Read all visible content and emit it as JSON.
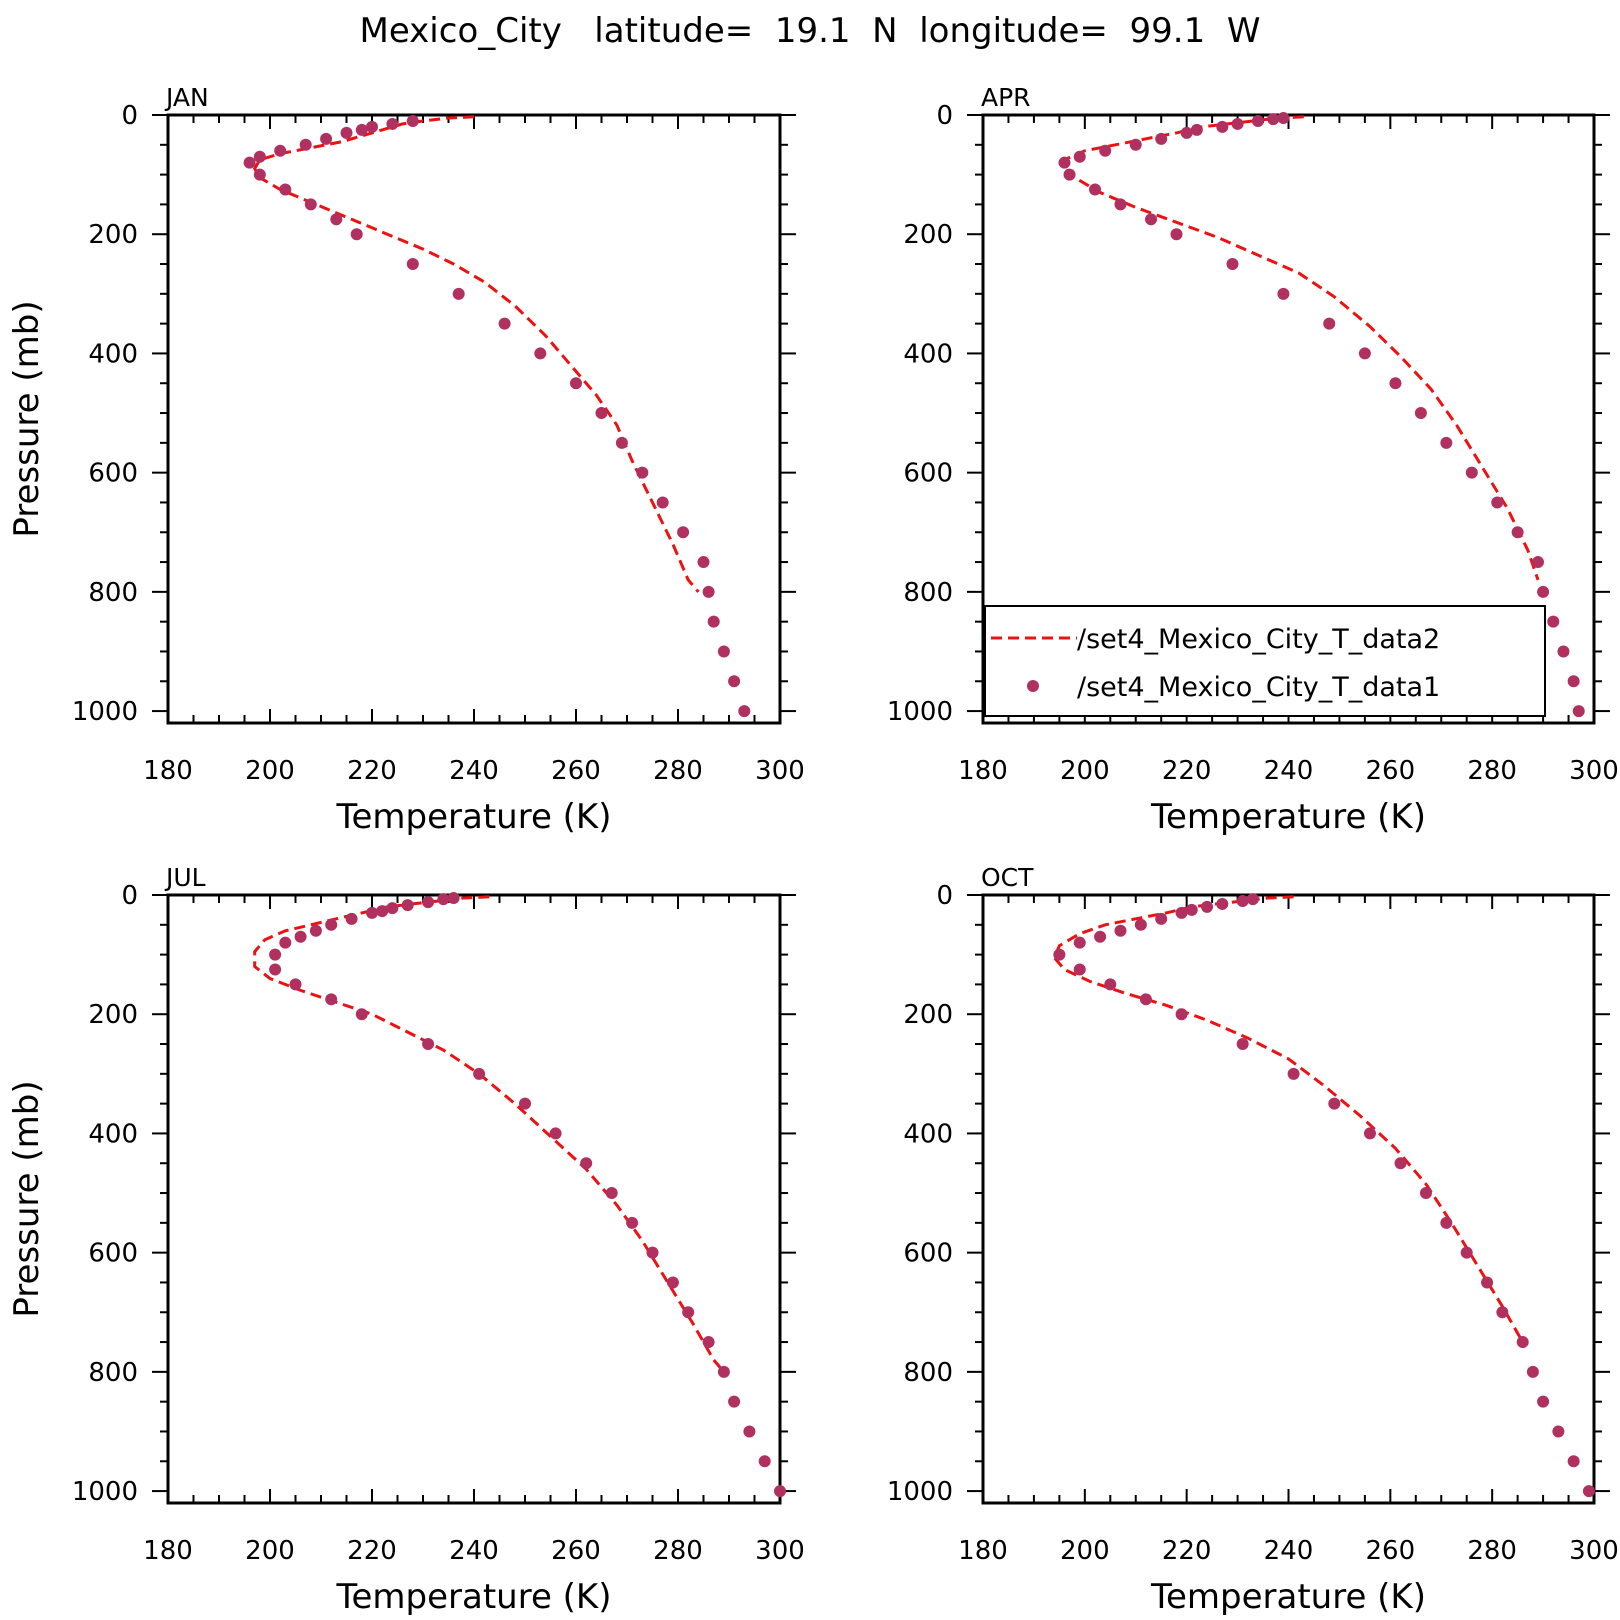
{
  "figure_title": "Mexico_City   latitude=  19.1  N  longitude=  99.1  W",
  "colors": {
    "line": "#ee1111",
    "marker": "#b03060",
    "axis": "#000000"
  },
  "legend": {
    "line_label": "/set4_Mexico_City_T_data2",
    "marker_label": "/set4_Mexico_City_T_data1",
    "panel": "APR"
  },
  "chart_data": [
    {
      "type": "line",
      "panel": "JAN",
      "xlabel": "Temperature (K)",
      "ylabel": "Pressure (mb)",
      "xlim": [
        180,
        300
      ],
      "ylim": [
        0,
        1020
      ],
      "y_inverted": true,
      "xticks": [
        180,
        200,
        220,
        240,
        260,
        280,
        300
      ],
      "yticks": [
        0,
        200,
        400,
        600,
        800,
        1000
      ],
      "series": [
        {
          "name": "/set4_Mexico_City_T_data2",
          "style": "dashed-line",
          "x": [
            240,
            235,
            230,
            226,
            222,
            218,
            214,
            208,
            202,
            198,
            197,
            198,
            202,
            209,
            216,
            223,
            230,
            236,
            242,
            248,
            254,
            259,
            264,
            268,
            271,
            275,
            279,
            282,
            284
          ],
          "y": [
            3,
            5,
            10,
            15,
            25,
            35,
            45,
            55,
            65,
            75,
            90,
            105,
            125,
            150,
            175,
            200,
            225,
            250,
            280,
            320,
            370,
            420,
            470,
            520,
            580,
            650,
            720,
            780,
            800
          ]
        },
        {
          "name": "/set4_Mexico_City_T_data1",
          "style": "markers",
          "x": [
            228,
            224,
            220,
            218,
            215,
            211,
            207,
            202,
            198,
            196,
            198,
            203,
            208,
            213,
            217,
            228,
            237,
            246,
            253,
            260,
            265,
            269,
            273,
            277,
            281,
            285,
            286,
            287,
            289,
            291,
            293
          ],
          "y": [
            10,
            15,
            20,
            25,
            30,
            40,
            50,
            60,
            70,
            80,
            100,
            125,
            150,
            175,
            200,
            250,
            300,
            350,
            400,
            450,
            500,
            550,
            600,
            650,
            700,
            750,
            800,
            850,
            900,
            950,
            1000
          ]
        }
      ]
    },
    {
      "type": "line",
      "panel": "APR",
      "xlabel": "Temperature (K)",
      "ylabel": "",
      "xlim": [
        180,
        300
      ],
      "ylim": [
        0,
        1020
      ],
      "y_inverted": true,
      "xticks": [
        180,
        200,
        220,
        240,
        260,
        280,
        300
      ],
      "yticks": [
        0,
        200,
        400,
        600,
        800,
        1000
      ],
      "series": [
        {
          "name": "/set4_Mexico_City_T_data2",
          "style": "dashed-line",
          "x": [
            243,
            238,
            233,
            228,
            223,
            218,
            212,
            206,
            200,
            196,
            196,
            198,
            203,
            210,
            218,
            226,
            234,
            242,
            249,
            256,
            262,
            268,
            273,
            278,
            283,
            287,
            289
          ],
          "y": [
            3,
            5,
            10,
            15,
            20,
            30,
            40,
            50,
            60,
            75,
            90,
            105,
            130,
            155,
            180,
            205,
            235,
            265,
            305,
            355,
            405,
            460,
            520,
            590,
            660,
            730,
            780
          ]
        },
        {
          "name": "/set4_Mexico_City_T_data1",
          "style": "markers",
          "x": [
            239,
            237,
            234,
            230,
            227,
            222,
            220,
            215,
            210,
            204,
            199,
            196,
            197,
            202,
            207,
            213,
            218,
            229,
            239,
            248,
            255,
            261,
            266,
            271,
            276,
            281,
            285,
            289,
            290,
            292,
            294,
            296,
            297
          ],
          "y": [
            5,
            7,
            10,
            15,
            20,
            25,
            30,
            40,
            50,
            60,
            70,
            80,
            100,
            125,
            150,
            175,
            200,
            250,
            300,
            350,
            400,
            450,
            500,
            550,
            600,
            650,
            700,
            750,
            800,
            850,
            900,
            950,
            1000
          ]
        }
      ]
    },
    {
      "type": "line",
      "panel": "JUL",
      "xlabel": "Temperature (K)",
      "ylabel": "Pressure (mb)",
      "xlim": [
        180,
        300
      ],
      "ylim": [
        0,
        1020
      ],
      "y_inverted": true,
      "xticks": [
        180,
        200,
        220,
        240,
        260,
        280,
        300
      ],
      "yticks": [
        0,
        200,
        400,
        600,
        800,
        1000
      ],
      "series": [
        {
          "name": "/set4_Mexico_City_T_data2",
          "style": "dashed-line",
          "x": [
            243,
            238,
            233,
            228,
            223,
            218,
            213,
            208,
            203,
            199,
            197,
            197,
            200,
            206,
            213,
            220,
            227,
            234,
            241,
            248,
            255,
            262,
            268,
            273,
            278,
            283,
            287,
            289
          ],
          "y": [
            3,
            5,
            10,
            15,
            20,
            30,
            40,
            50,
            60,
            75,
            95,
            120,
            140,
            160,
            180,
            200,
            230,
            260,
            300,
            350,
            405,
            460,
            520,
            580,
            650,
            720,
            780,
            800
          ]
        },
        {
          "name": "/set4_Mexico_City_T_data1",
          "style": "markers",
          "x": [
            236,
            234,
            231,
            227,
            224,
            222,
            220,
            216,
            212,
            209,
            206,
            203,
            201,
            201,
            205,
            212,
            218,
            231,
            241,
            250,
            256,
            262,
            267,
            271,
            275,
            279,
            282,
            286,
            289,
            291,
            294,
            297,
            300
          ],
          "y": [
            5,
            7,
            12,
            17,
            22,
            27,
            30,
            40,
            50,
            60,
            70,
            80,
            100,
            125,
            150,
            175,
            200,
            250,
            300,
            350,
            400,
            450,
            500,
            550,
            600,
            650,
            700,
            750,
            800,
            850,
            900,
            950,
            1000
          ]
        }
      ]
    },
    {
      "type": "line",
      "panel": "OCT",
      "xlabel": "Temperature (K)",
      "ylabel": "",
      "xlim": [
        180,
        300
      ],
      "ylim": [
        0,
        1020
      ],
      "y_inverted": true,
      "xticks": [
        180,
        200,
        220,
        240,
        260,
        280,
        300
      ],
      "yticks": [
        0,
        200,
        400,
        600,
        800,
        1000
      ],
      "series": [
        {
          "name": "/set4_Mexico_City_T_data2",
          "style": "dashed-line",
          "x": [
            241,
            236,
            231,
            226,
            221,
            216,
            210,
            204,
            199,
            195,
            194,
            196,
            201,
            208,
            216,
            224,
            232,
            240,
            247,
            254,
            261,
            267,
            272,
            277,
            282,
            286
          ],
          "y": [
            3,
            5,
            10,
            15,
            20,
            30,
            40,
            50,
            65,
            85,
            105,
            125,
            145,
            165,
            185,
            210,
            240,
            275,
            320,
            370,
            425,
            485,
            550,
            620,
            690,
            750
          ]
        },
        {
          "name": "/set4_Mexico_City_T_data1",
          "style": "markers",
          "x": [
            233,
            231,
            227,
            224,
            221,
            219,
            215,
            211,
            207,
            203,
            199,
            195,
            199,
            205,
            212,
            219,
            231,
            241,
            249,
            256,
            262,
            267,
            271,
            275,
            279,
            282,
            286,
            288,
            290,
            293,
            296,
            299
          ],
          "y": [
            7,
            10,
            15,
            20,
            25,
            30,
            40,
            50,
            60,
            70,
            80,
            100,
            125,
            150,
            175,
            200,
            250,
            300,
            350,
            400,
            450,
            500,
            550,
            600,
            650,
            700,
            750,
            800,
            850,
            900,
            950,
            1000
          ]
        }
      ]
    }
  ]
}
